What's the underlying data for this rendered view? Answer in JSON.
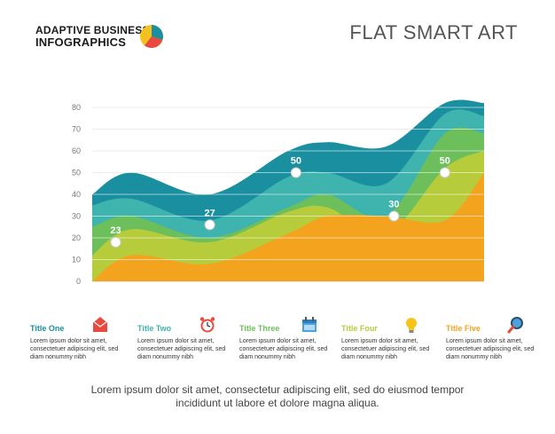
{
  "brand": {
    "line1": "ADAPTIVE BUSINESS",
    "line2": "INFOGRAPHICS"
  },
  "title": "FLAT SMART ART",
  "colors": {
    "teal_dark": "#1a8fa0",
    "teal": "#3fb3ad",
    "green": "#6cbf5a",
    "olive": "#b6cc3a",
    "orange": "#f4a31e",
    "orange_bright": "#f89b1b"
  },
  "chart_data": {
    "type": "area",
    "ylim": [
      0,
      80
    ],
    "yticks": [
      "0",
      "10",
      "20",
      "30",
      "40",
      "50",
      "60",
      "70",
      "80"
    ],
    "grid": true,
    "series": [
      {
        "color": "#1a8fa0",
        "x": [
          0,
          0.1,
          0.3,
          0.5,
          0.6,
          0.75,
          0.9,
          1
        ],
        "y": [
          40,
          50,
          40,
          60,
          64,
          62,
          82,
          82
        ]
      },
      {
        "color": "#3fb3ad",
        "x": [
          0,
          0.1,
          0.3,
          0.5,
          0.6,
          0.75,
          0.9,
          1
        ],
        "y": [
          35,
          38,
          28,
          48,
          50,
          45,
          77,
          76
        ]
      },
      {
        "color": "#6cbf5a",
        "x": [
          0,
          0.1,
          0.3,
          0.5,
          0.6,
          0.75,
          0.9,
          1
        ],
        "y": [
          25,
          30,
          20,
          34,
          40,
          30,
          68,
          68
        ]
      },
      {
        "color": "#b6cc3a",
        "x": [
          0,
          0.1,
          0.3,
          0.5,
          0.6,
          0.75,
          0.9,
          1
        ],
        "y": [
          12,
          24,
          18,
          32,
          34,
          22,
          52,
          60
        ]
      },
      {
        "color": "#f4a31e",
        "x": [
          0,
          0.1,
          0.3,
          0.5,
          0.6,
          0.75,
          0.9,
          1
        ],
        "y": [
          0,
          12,
          8,
          22,
          30,
          30,
          28,
          50
        ]
      }
    ],
    "markers": [
      {
        "label": "23",
        "x": 0.06,
        "y": 18
      },
      {
        "label": "27",
        "x": 0.3,
        "y": 26
      },
      {
        "label": "50",
        "x": 0.52,
        "y": 50
      },
      {
        "label": "30",
        "x": 0.77,
        "y": 30
      },
      {
        "label": "50",
        "x": 0.9,
        "y": 50
      }
    ]
  },
  "legend": [
    {
      "title": "Title One",
      "color": "#1a8fa0",
      "icon": "envelope-icon",
      "text": "Lorem ipsum dolor sit amet, consectetuer adipiscing elit, sed diam nonummy nibh"
    },
    {
      "title": "Title Two",
      "color": "#3fb3ad",
      "icon": "alarm-clock-icon",
      "text": "Lorem ipsum dolor sit amet, consectetuer adipiscing elit, sed diam nonummy nibh"
    },
    {
      "title": "Title Three",
      "color": "#6cbf5a",
      "icon": "calendar-icon",
      "text": "Lorem ipsum dolor sit amet, consectetuer adipiscing elit, sed diam nonummy nibh"
    },
    {
      "title": "Title Four",
      "color": "#b6cc3a",
      "icon": "lightbulb-icon",
      "text": "Lorem ipsum dolor sit amet, consectetuer adipiscing elit, sed diam nonummy nibh"
    },
    {
      "title": "Title Five",
      "color": "#f4a31e",
      "icon": "magnifier-icon",
      "text": "Lorem ipsum dolor sit amet, consectetuer adipiscing elit, sed diam nonummy nibh"
    }
  ],
  "footer": "Lorem ipsum dolor sit amet, consectetur adipiscing elit, sed do eiusmod tempor incididunt ut labore et dolore magna aliqua."
}
